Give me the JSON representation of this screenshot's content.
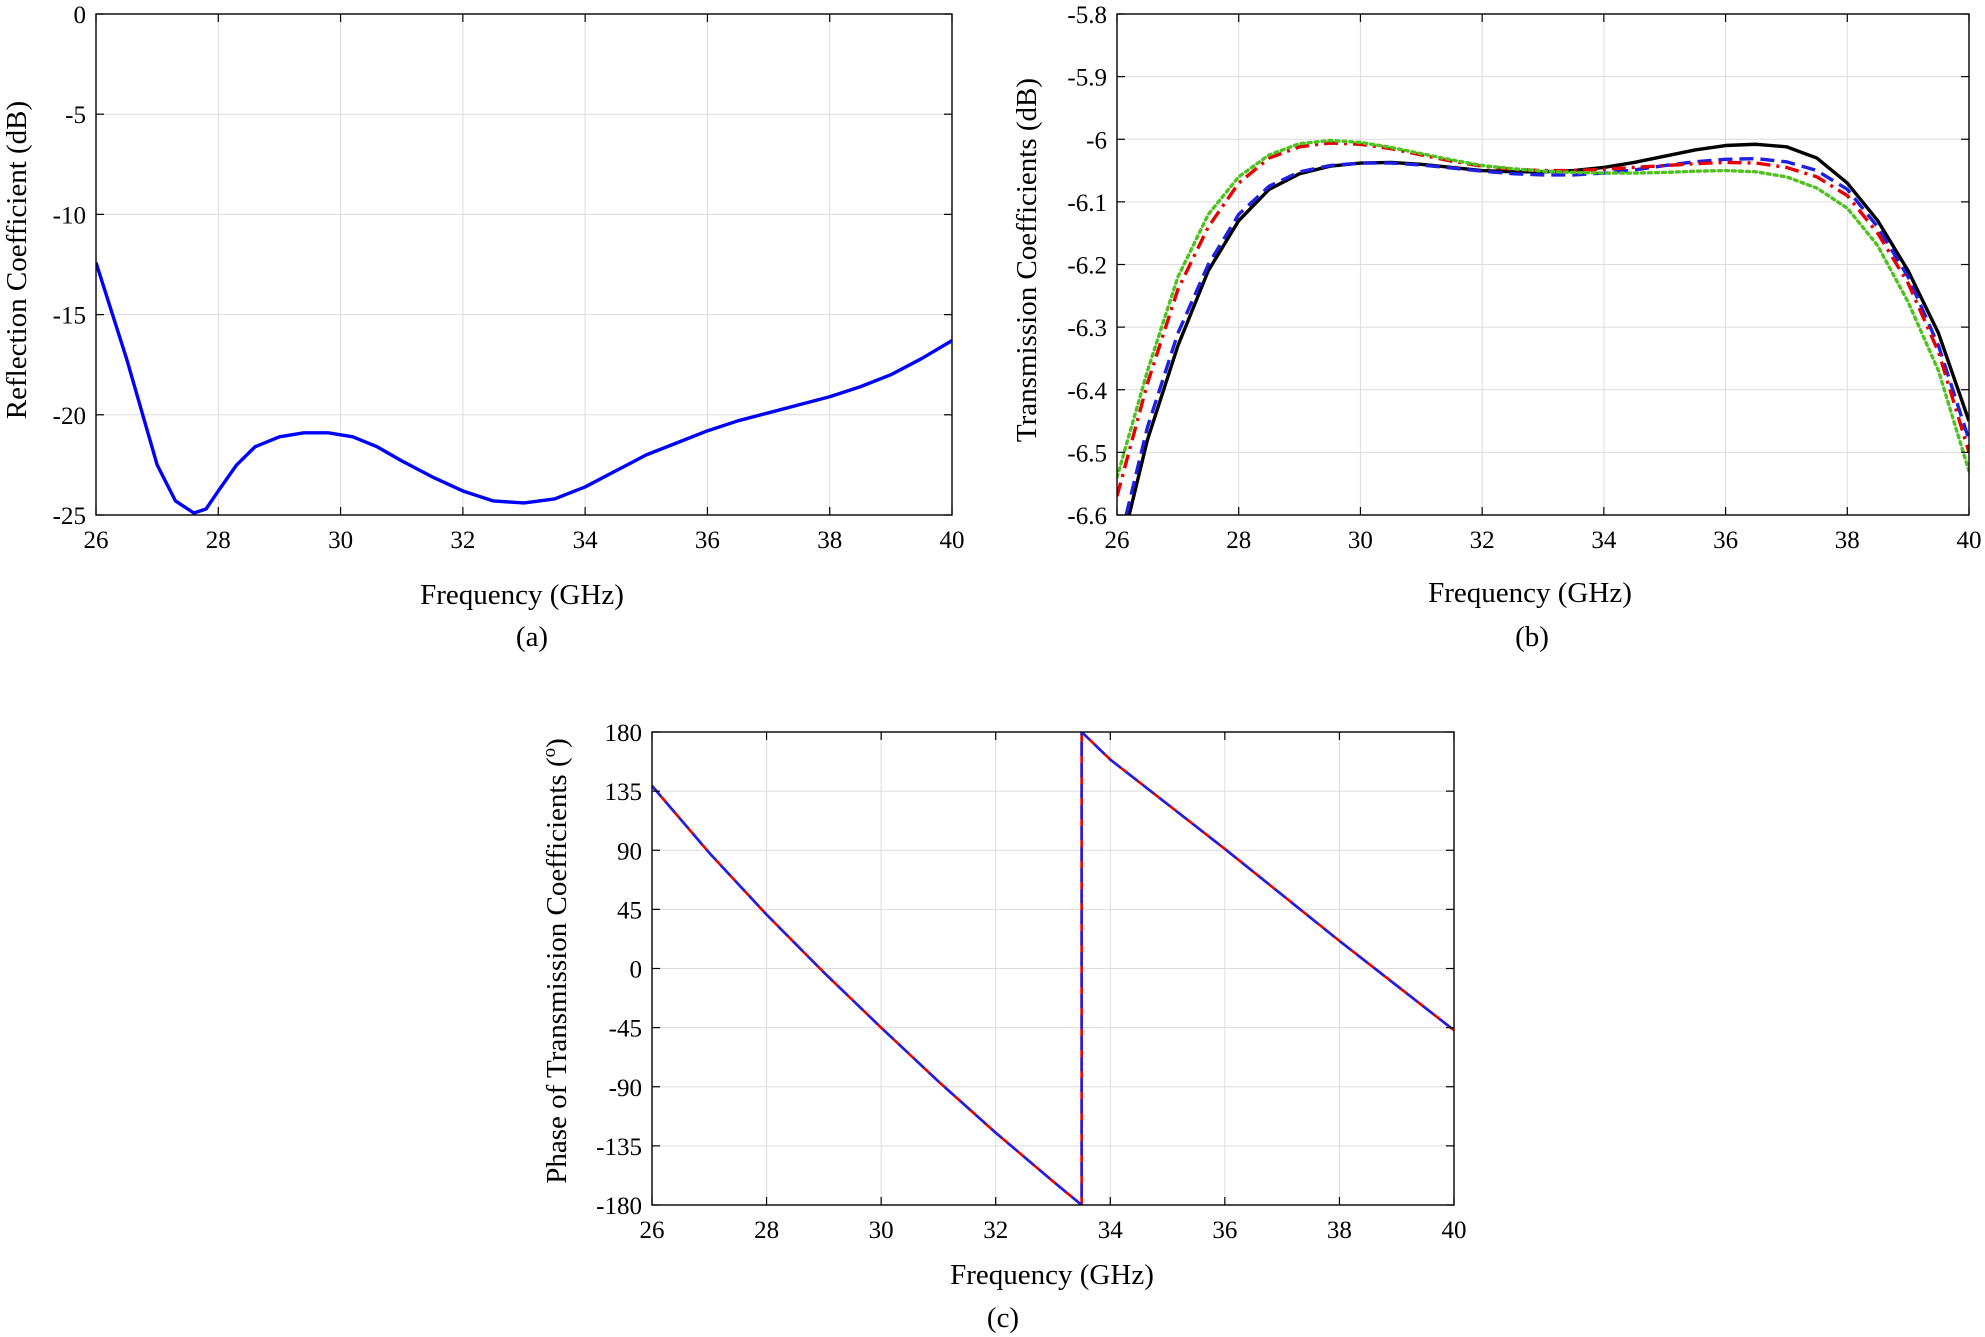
{
  "chart_data": [
    {
      "type": "line",
      "panel": "(a)",
      "xlabel": "Frequency (GHz)",
      "ylabel": "Reflection Coefficient (dB)",
      "xlim": [
        26,
        40
      ],
      "ylim": [
        -25,
        0
      ],
      "xticks": [
        26,
        28,
        30,
        32,
        34,
        36,
        38,
        40
      ],
      "yticks": [
        0,
        -5,
        -10,
        -15,
        -20,
        -25
      ],
      "grid": true,
      "series": [
        {
          "color": "#0000ff",
          "dash": "solid",
          "x": [
            26,
            26.5,
            27,
            27.3,
            27.6,
            27.8,
            28,
            28.3,
            28.6,
            29,
            29.4,
            29.8,
            30.2,
            30.6,
            31,
            31.5,
            32,
            32.5,
            33,
            33.5,
            34,
            34.5,
            35,
            35.5,
            36,
            36.5,
            37,
            37.5,
            38,
            38.5,
            39,
            39.5,
            40
          ],
          "y": [
            -12.4,
            -17.2,
            -22.5,
            -24.3,
            -24.9,
            -24.7,
            -23.8,
            -22.5,
            -21.6,
            -21.1,
            -20.9,
            -20.9,
            -21.1,
            -21.6,
            -22.3,
            -23.1,
            -23.8,
            -24.3,
            -24.4,
            -24.2,
            -23.6,
            -22.8,
            -22.0,
            -21.4,
            -20.8,
            -20.3,
            -19.9,
            -19.5,
            -19.1,
            -18.6,
            -18.0,
            -17.2,
            -16.3
          ]
        }
      ]
    },
    {
      "type": "line",
      "panel": "(b)",
      "xlabel": "Frequency (GHz)",
      "ylabel": "Transmission Coefficients (dB)",
      "xlim": [
        26,
        40
      ],
      "ylim": [
        -6.6,
        -5.8
      ],
      "xticks": [
        26,
        28,
        30,
        32,
        34,
        36,
        38,
        40
      ],
      "yticks": [
        -5.8,
        -5.9,
        -6,
        -6.1,
        -6.2,
        -6.3,
        -6.4,
        -6.5,
        -6.6
      ],
      "grid": true,
      "series": [
        {
          "color": "#000000",
          "dash": "solid",
          "x": [
            26.2,
            26.5,
            27,
            27.5,
            28,
            28.5,
            29,
            29.5,
            30,
            30.5,
            31,
            31.5,
            32,
            32.5,
            33,
            33.5,
            34,
            34.5,
            35,
            35.5,
            36,
            36.5,
            37,
            37.5,
            38,
            38.5,
            39,
            39.5,
            40
          ],
          "y": [
            -6.6,
            -6.48,
            -6.33,
            -6.21,
            -6.13,
            -6.08,
            -6.055,
            -6.043,
            -6.038,
            -6.037,
            -6.04,
            -6.045,
            -6.05,
            -6.052,
            -6.052,
            -6.05,
            -6.045,
            -6.037,
            -6.027,
            -6.017,
            -6.01,
            -6.008,
            -6.012,
            -6.03,
            -6.07,
            -6.13,
            -6.21,
            -6.31,
            -6.45
          ]
        },
        {
          "color": "#1f1fe6",
          "dash": "dashed",
          "x": [
            26.15,
            26.5,
            27,
            27.5,
            28,
            28.5,
            29,
            29.5,
            30,
            30.5,
            31,
            31.5,
            32,
            32.5,
            33,
            33.5,
            34,
            34.5,
            35,
            35.5,
            36,
            36.5,
            37,
            37.5,
            38,
            38.5,
            39,
            39.5,
            40
          ],
          "y": [
            -6.6,
            -6.46,
            -6.31,
            -6.2,
            -6.12,
            -6.075,
            -6.052,
            -6.042,
            -6.038,
            -6.038,
            -6.041,
            -6.046,
            -6.051,
            -6.055,
            -6.057,
            -6.057,
            -6.054,
            -6.049,
            -6.042,
            -6.036,
            -6.032,
            -6.031,
            -6.036,
            -6.05,
            -6.08,
            -6.14,
            -6.22,
            -6.33,
            -6.48
          ]
        },
        {
          "color": "#e60000",
          "dash": "dashdot",
          "x": [
            26,
            26.5,
            27,
            27.5,
            28,
            28.5,
            29,
            29.5,
            30,
            30.5,
            31,
            31.5,
            32,
            32.5,
            33,
            33.5,
            34,
            34.5,
            35,
            35.5,
            36,
            36.5,
            37,
            37.5,
            38,
            38.5,
            39,
            39.5,
            40
          ],
          "y": [
            -6.57,
            -6.39,
            -6.24,
            -6.14,
            -6.07,
            -6.03,
            -6.012,
            -6.006,
            -6.008,
            -6.015,
            -6.025,
            -6.035,
            -6.043,
            -6.048,
            -6.05,
            -6.05,
            -6.048,
            -6.045,
            -6.042,
            -6.039,
            -6.037,
            -6.038,
            -6.045,
            -6.06,
            -6.09,
            -6.15,
            -6.23,
            -6.34,
            -6.5
          ]
        },
        {
          "color": "#4fc21f",
          "dash": "dotted",
          "x": [
            26,
            26.5,
            27,
            27.5,
            28,
            28.5,
            29,
            29.5,
            30,
            30.5,
            31,
            31.5,
            32,
            32.5,
            33,
            33.5,
            34,
            34.5,
            35,
            35.5,
            36,
            36.5,
            37,
            37.5,
            38,
            38.5,
            39,
            39.5,
            40
          ],
          "y": [
            -6.54,
            -6.37,
            -6.22,
            -6.12,
            -6.06,
            -6.025,
            -6.007,
            -6.002,
            -6.005,
            -6.013,
            -6.023,
            -6.033,
            -6.042,
            -6.047,
            -6.051,
            -6.053,
            -6.054,
            -6.054,
            -6.053,
            -6.051,
            -6.05,
            -6.052,
            -6.06,
            -6.078,
            -6.11,
            -6.17,
            -6.26,
            -6.37,
            -6.53
          ]
        }
      ]
    },
    {
      "type": "line",
      "panel": "(c)",
      "xlabel": "Frequency (GHz)",
      "ylabel": "Phase of Transmission Coefficients (°)",
      "ylabel_main": "Phase of Transmission Coefficients (",
      "ylabel_degree": "o",
      "ylabel_close": ")",
      "xlim": [
        26,
        40
      ],
      "ylim": [
        -180,
        180
      ],
      "xticks": [
        26,
        28,
        30,
        32,
        34,
        36,
        38,
        40
      ],
      "yticks": [
        180,
        135,
        90,
        45,
        0,
        -45,
        -90,
        -135,
        -180
      ],
      "grid": true,
      "series": [
        {
          "color": "#e60000",
          "dash": "solid",
          "x": [
            26,
            27,
            28,
            29,
            30,
            31,
            32,
            33,
            33.5,
            33.5,
            34,
            35,
            36,
            37,
            38,
            39,
            40
          ],
          "y": [
            139,
            88,
            41,
            -3,
            -45,
            -86,
            -125,
            -162,
            -180,
            180,
            159,
            125,
            91,
            56,
            21,
            -13,
            -47
          ]
        },
        {
          "color": "#1f1fe6",
          "dash": "dashed",
          "x": [
            26,
            27,
            28,
            29,
            30,
            31,
            32,
            33,
            33.5,
            33.5,
            34,
            35,
            36,
            37,
            38,
            39,
            40
          ],
          "y": [
            139,
            88,
            41,
            -3,
            -45,
            -86,
            -125,
            -162,
            -180,
            180,
            159,
            125,
            91,
            56,
            21,
            -13,
            -47
          ]
        }
      ]
    }
  ]
}
